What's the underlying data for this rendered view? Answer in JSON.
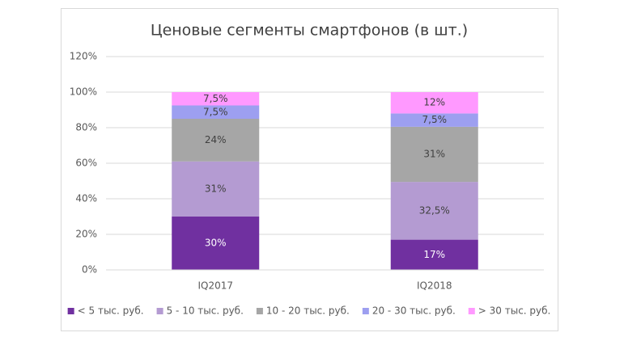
{
  "chart_data": {
    "type": "stacked_bar",
    "title": "Ценовые сегменты смартфонов (в шт.)",
    "categories": [
      "IQ2017",
      "IQ2018"
    ],
    "series": [
      {
        "name": "< 5 тыс. руб.",
        "color": "#7030a0",
        "values": [
          30,
          17
        ],
        "value_labels": [
          "30%",
          "17%"
        ]
      },
      {
        "name": "5 - 10 тыс. руб.",
        "color": "#b49bd2",
        "values": [
          31,
          32.5
        ],
        "value_labels": [
          "31%",
          "32,5%"
        ]
      },
      {
        "name": "10 - 20 тыс. руб.",
        "color": "#a6a6a6",
        "values": [
          24,
          31
        ],
        "value_labels": [
          "24%",
          "31%"
        ]
      },
      {
        "name": "20 - 30 тыс. руб.",
        "color": "#9d9ff0",
        "values": [
          7.5,
          7.5
        ],
        "value_labels": [
          "7,5%",
          "7,5%"
        ]
      },
      {
        "name": "> 30 тыс. руб.",
        "color": "#ff99ff",
        "values": [
          7.5,
          12
        ],
        "value_labels": [
          "7,5%",
          "12%"
        ]
      }
    ],
    "ylim": [
      0,
      120
    ],
    "yticks": [
      {
        "value": 0,
        "label": "0%"
      },
      {
        "value": 20,
        "label": "20%"
      },
      {
        "value": 40,
        "label": "40%"
      },
      {
        "value": 60,
        "label": "60%"
      },
      {
        "value": 80,
        "label": "80%"
      },
      {
        "value": 100,
        "label": "100%"
      },
      {
        "value": 120,
        "label": "120%"
      }
    ],
    "grid": true,
    "legend": "bottom"
  }
}
